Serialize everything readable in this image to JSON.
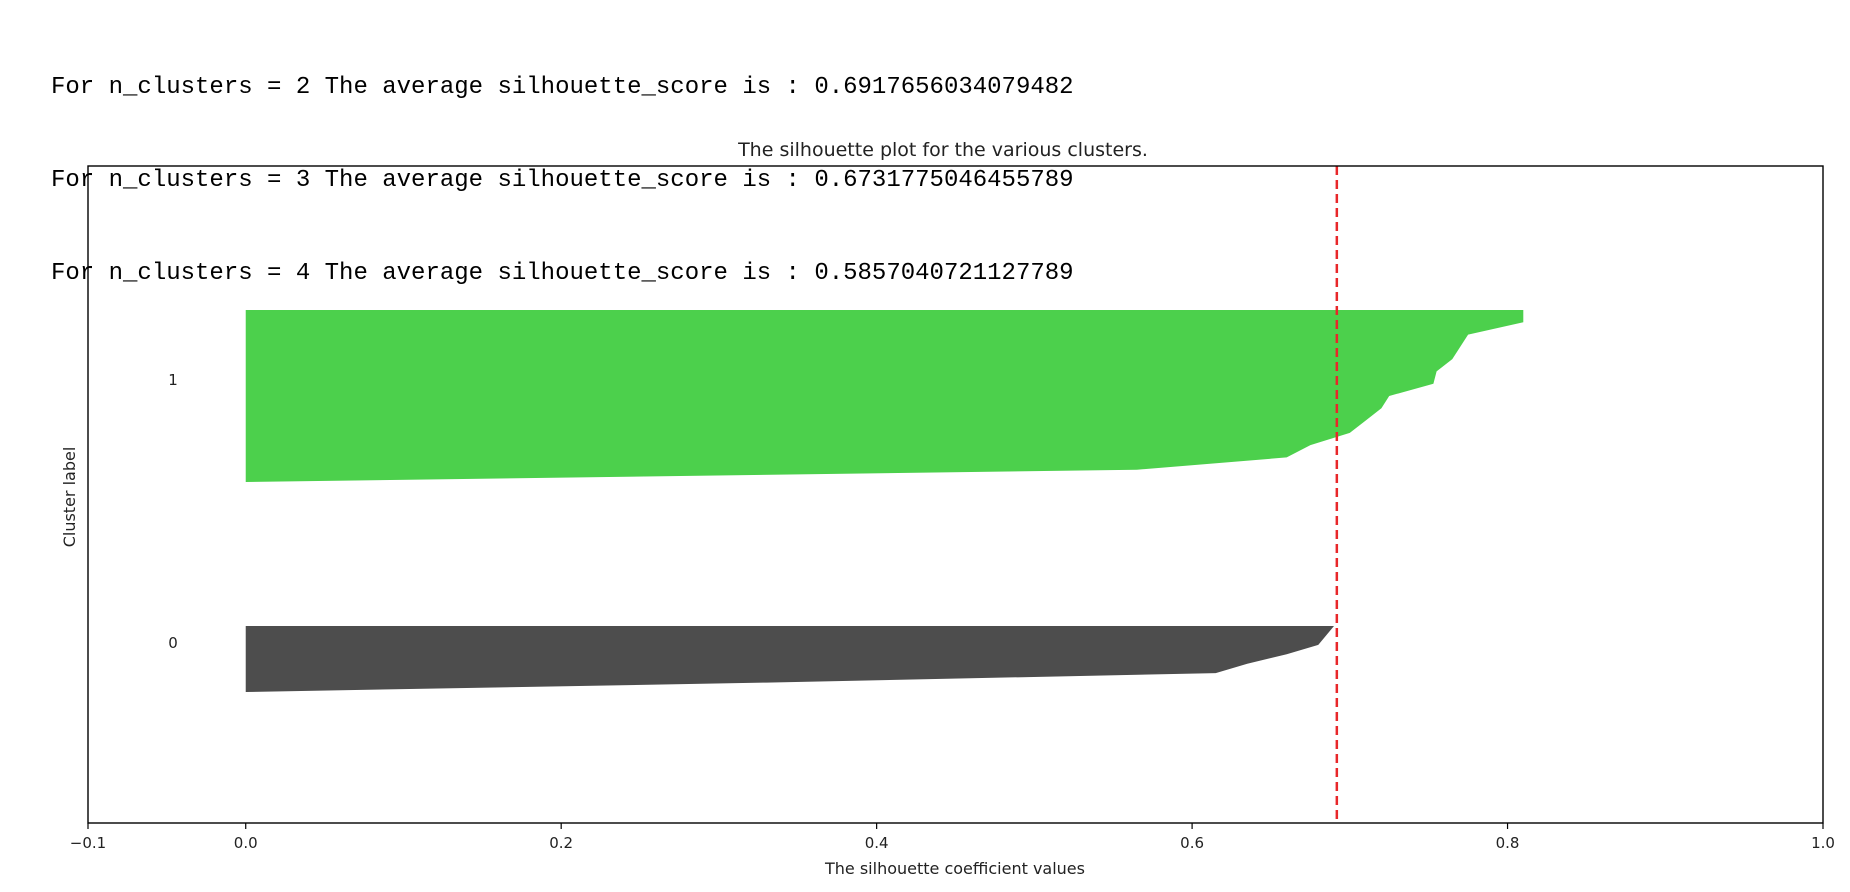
{
  "output_lines": [
    "For n_clusters = 2 The average silhouette_score is : 0.6917656034079482",
    "For n_clusters = 3 The average silhouette_score is : 0.6731775046455789",
    "For n_clusters = 4 The average silhouette_score is : 0.5857040721127789"
  ],
  "chart_data": {
    "type": "area",
    "title": "The silhouette plot for the various clusters.",
    "xlabel": "The silhouette coefficient values",
    "ylabel": "Cluster label",
    "xlim": [
      -0.1,
      1.0
    ],
    "xticks": [
      -0.1,
      0.0,
      0.2,
      0.4,
      0.6,
      0.8,
      1.0
    ],
    "xtick_labels": [
      "−0.1",
      "0.0",
      "0.2",
      "0.4",
      "0.6",
      "0.8",
      "1.0"
    ],
    "average_score": 0.6917656034079482,
    "average_line_color": "#e8272a",
    "clusters": [
      {
        "label": "0",
        "color": "#4d4d4d",
        "sorted_coefficients_descending": [
          0.69,
          0.685,
          0.68,
          0.66,
          0.635,
          0.615,
          0.33,
          0.0
        ]
      },
      {
        "label": "1",
        "color": "#4cd04c",
        "sorted_coefficients_descending": [
          0.81,
          0.81,
          0.775,
          0.77,
          0.765,
          0.755,
          0.753,
          0.725,
          0.72,
          0.71,
          0.7,
          0.675,
          0.66,
          0.565,
          0.0
        ]
      }
    ]
  }
}
